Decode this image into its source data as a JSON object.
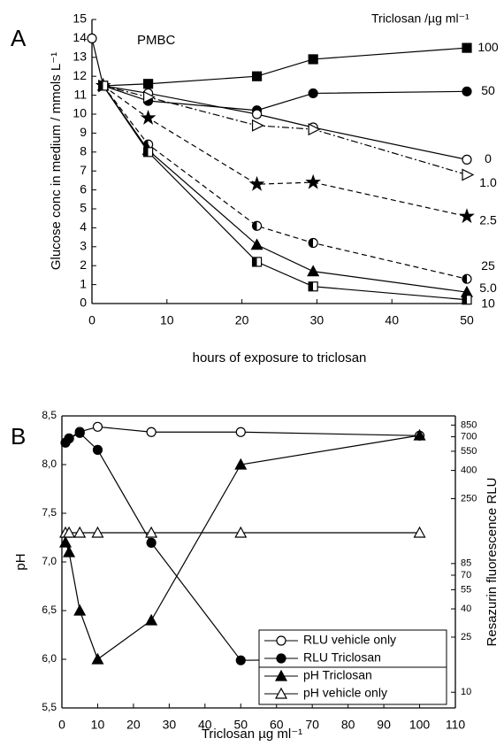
{
  "chart_data": [
    {
      "type": "line",
      "panel_label": "A",
      "annotation": "PMBC",
      "legend_title": "Triclosan /µg ml⁻¹",
      "x_label": "hours of exposure to triclosan",
      "y_label": "Glucose conc in medium / mmols L⁻¹",
      "x": [
        0,
        1.5,
        7.5,
        22,
        29.5,
        50
      ],
      "xlim": [
        0,
        50
      ],
      "xticks": [
        0,
        10,
        20,
        30,
        40,
        50
      ],
      "ylim": [
        0,
        15
      ],
      "yticks": [
        0,
        1,
        2,
        3,
        4,
        5,
        6,
        7,
        8,
        9,
        10,
        11,
        12,
        13,
        14,
        15
      ],
      "series": [
        {
          "name": "100",
          "color": "#000000",
          "marker": "square",
          "dash": "solid",
          "values": [
            null,
            11.5,
            11.6,
            12.0,
            12.9,
            13.5
          ]
        },
        {
          "name": "50",
          "color": "#000000",
          "marker": "circle",
          "dash": "solid",
          "values": [
            null,
            11.5,
            10.7,
            10.2,
            11.1,
            11.2
          ]
        },
        {
          "name": "0",
          "color": "#000000",
          "marker": "open-circle",
          "dash": "solid",
          "values": [
            14,
            11.5,
            11.1,
            10.0,
            9.3,
            7.6
          ]
        },
        {
          "name": "1.0",
          "color": "#000000",
          "marker": "open-triangle-right",
          "dash": "dashdot",
          "values": [
            null,
            11.5,
            10.9,
            9.4,
            9.2,
            6.8
          ]
        },
        {
          "name": "2.5",
          "color": "#000000",
          "marker": "star",
          "dash": "dashed",
          "values": [
            null,
            11.5,
            9.8,
            6.3,
            6.4,
            4.6
          ]
        },
        {
          "name": "25",
          "color": "#000000",
          "marker": "half-circle",
          "dash": "dashed",
          "values": [
            null,
            11.5,
            8.4,
            4.1,
            3.2,
            1.3
          ]
        },
        {
          "name": "5.0",
          "color": "#000000",
          "marker": "triangle",
          "dash": "solid",
          "values": [
            null,
            11.5,
            8.1,
            3.1,
            1.7,
            0.6
          ]
        },
        {
          "name": "10",
          "color": "#000000",
          "marker": "half-square",
          "dash": "solid",
          "values": [
            null,
            11.5,
            8.0,
            2.2,
            0.9,
            0.2
          ]
        }
      ]
    },
    {
      "type": "line",
      "panel_label": "B",
      "x_label": "Triclosan  µg ml⁻¹",
      "y_label": "pH",
      "y2_label": "Resazurin fluorescence RLU",
      "x": [
        1,
        2,
        5,
        10,
        25,
        50,
        100
      ],
      "xlim": [
        0,
        110
      ],
      "xticks": [
        0,
        10,
        20,
        30,
        40,
        50,
        60,
        70,
        80,
        90,
        100,
        110
      ],
      "ylim": [
        5.5,
        8.5
      ],
      "yticks": [
        {
          "value": 5.5,
          "label": "5,5"
        },
        {
          "value": 6.0,
          "label": "6,0"
        },
        {
          "value": 6.5,
          "label": "6,5"
        },
        {
          "value": 7.0,
          "label": "7,0"
        },
        {
          "value": 7.5,
          "label": "7,5"
        },
        {
          "value": 8.0,
          "label": "8,0"
        },
        {
          "value": 8.5,
          "label": "8,5"
        }
      ],
      "y2lim": [
        7.7,
        990
      ],
      "y2scale": "log",
      "y2ticks": [
        10,
        25,
        40,
        55,
        70,
        85,
        250,
        400,
        550,
        700,
        850
      ],
      "legend": "lower right",
      "series": [
        {
          "name": "RLU vehicle only",
          "color": "#000000",
          "marker": "open-circle",
          "axis": "y2",
          "values": [
            null,
            680,
            760,
            826,
            757,
            757,
            713
          ]
        },
        {
          "name": "RLU Triclosan",
          "color": "#000000",
          "marker": "circle",
          "axis": "y2",
          "values": [
            634,
            682,
            745,
            563,
            120,
            17,
            17.5
          ]
        },
        {
          "name": "pH Triclosan",
          "color": "#000000",
          "marker": "triangle",
          "axis": "y",
          "values": [
            7.2,
            7.1,
            6.5,
            6.0,
            6.4,
            8.0,
            8.3
          ]
        },
        {
          "name": "pH vehicle only",
          "color": "#000000",
          "marker": "open-triangle",
          "axis": "y",
          "values": [
            7.3,
            7.3,
            7.3,
            7.3,
            7.3,
            7.3,
            7.3
          ]
        }
      ]
    }
  ]
}
